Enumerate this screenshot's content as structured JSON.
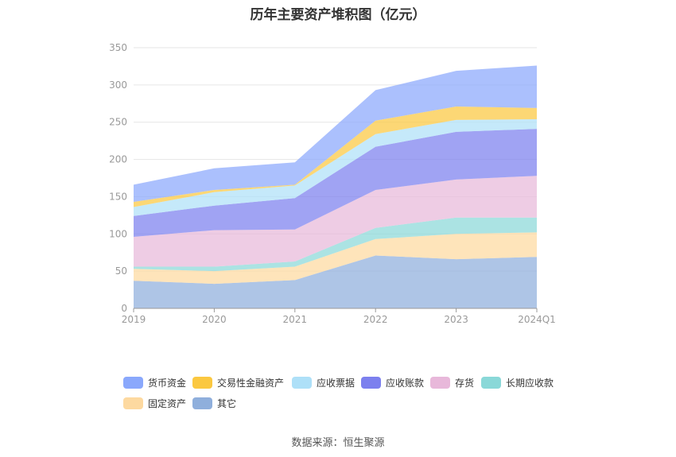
{
  "chart_data": {
    "type": "area",
    "stacked": true,
    "title": "历年主要资产堆积图（亿元）",
    "categories": [
      "2019",
      "2020",
      "2021",
      "2022",
      "2023",
      "2024Q1"
    ],
    "ylim": [
      0,
      350
    ],
    "yticks": [
      0,
      50,
      100,
      150,
      200,
      250,
      300,
      350
    ],
    "grid": true,
    "legend_position": "bottom",
    "series": [
      {
        "name": "其它",
        "color": "#8fafdc",
        "values": [
          37,
          33,
          38,
          71,
          66,
          69
        ]
      },
      {
        "name": "固定资产",
        "color": "#fdd9a0",
        "values": [
          16,
          17,
          18,
          22,
          34,
          33
        ]
      },
      {
        "name": "长期应收款",
        "color": "#8ad8d8",
        "values": [
          3,
          6,
          7,
          15,
          22,
          20
        ]
      },
      {
        "name": "存货",
        "color": "#e8b8da",
        "values": [
          40,
          49,
          43,
          51,
          51,
          56
        ]
      },
      {
        "name": "应收账款",
        "color": "#7c80ee",
        "values": [
          28,
          33,
          42,
          58,
          64,
          63
        ]
      },
      {
        "name": "应收票据",
        "color": "#aee0f8",
        "values": [
          12,
          18,
          17,
          17,
          16,
          13
        ]
      },
      {
        "name": "交易性金融资产",
        "color": "#fbc840",
        "values": [
          7,
          3,
          1,
          18,
          18,
          15
        ]
      },
      {
        "name": "货币资金",
        "color": "#8aa8fc",
        "values": [
          23,
          29,
          30,
          41,
          48,
          57
        ]
      }
    ]
  },
  "legend_order": [
    "货币资金",
    "交易性金融资产",
    "应收票据",
    "应收账款",
    "存货",
    "长期应收款",
    "固定资产",
    "其它"
  ],
  "source": "数据来源：恒生聚源"
}
